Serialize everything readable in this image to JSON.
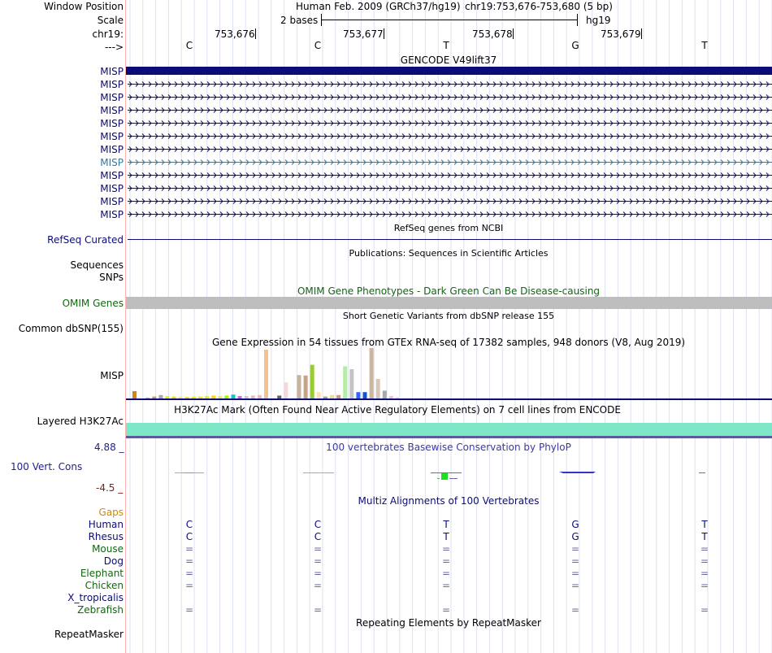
{
  "header": {
    "window_position_label": "Window Position",
    "scale_label": "Scale",
    "chrom_label": "chr19:",
    "strand_label": "--->",
    "assembly_title": "Human Feb. 2009 (GRCh37/hg19)",
    "position": "chr19:753,676-753,680 (5 bp)",
    "scale_text": "2 bases",
    "db": "hg19",
    "ruler_ticks": [
      "753,676",
      "753,677",
      "753,678",
      "753,679"
    ],
    "bases": [
      "C",
      "C",
      "T",
      "G",
      "T"
    ]
  },
  "gencode": {
    "title": "GENCODE V49lift37",
    "labels": [
      "MISP",
      "MISP",
      "MISP",
      "MISP",
      "MISP",
      "MISP",
      "MISP",
      "MISP",
      "MISP",
      "MISP",
      "MISP",
      "MISP"
    ],
    "highlight_index": 7
  },
  "refseq": {
    "title": "RefSeq genes from NCBI",
    "label": "RefSeq Curated"
  },
  "publications": {
    "title": "Publications: Sequences in Scientific Articles",
    "labels": [
      "Sequences",
      "SNPs"
    ]
  },
  "omim": {
    "title": "OMIM Gene Phenotypes - Dark Green Can Be Disease-causing",
    "label": "OMIM Genes"
  },
  "dbsnp": {
    "title": "Short Genetic Variants from dbSNP release 155",
    "label": "Common dbSNP(155)"
  },
  "gtex": {
    "title": "Gene Expression in 54 tissues from GTEx RNA-seq of 17382 samples, 948 donors (V8, Aug 2019)",
    "label": "MISP",
    "bars": [
      {
        "v": 0.15,
        "c": "#d4850b"
      },
      {
        "v": 0.0,
        "c": "#ffaa00"
      },
      {
        "v": 0.02,
        "c": "#bbbbbb"
      },
      {
        "v": 0.04,
        "c": "#cc9966"
      },
      {
        "v": 0.07,
        "c": "#aaa9a9"
      },
      {
        "v": 0.05,
        "c": "#eeee00"
      },
      {
        "v": 0.04,
        "c": "#ffd700"
      },
      {
        "v": 0.04,
        "c": "#f0e68c"
      },
      {
        "v": 0.03,
        "c": "#ffd700"
      },
      {
        "v": 0.04,
        "c": "#eeee00"
      },
      {
        "v": 0.04,
        "c": "#ffdd33"
      },
      {
        "v": 0.05,
        "c": "#eeee00"
      },
      {
        "v": 0.06,
        "c": "#ffd700"
      },
      {
        "v": 0.05,
        "c": "#eeee44"
      },
      {
        "v": 0.06,
        "c": "#99ff00"
      },
      {
        "v": 0.08,
        "c": "#00cccc"
      },
      {
        "v": 0.05,
        "c": "#cc66ff"
      },
      {
        "v": 0.05,
        "c": "#d9c6c6"
      },
      {
        "v": 0.06,
        "c": "#eeb8b8"
      },
      {
        "v": 0.07,
        "c": "#eebbbb"
      },
      {
        "v": 1.0,
        "c": "#f4c28d"
      },
      {
        "v": 0.0,
        "c": "#ffffff"
      },
      {
        "v": 0.06,
        "c": "#666666"
      },
      {
        "v": 0.33,
        "c": "#f5d9d9"
      },
      {
        "v": 0.0,
        "c": "#ffffff"
      },
      {
        "v": 0.48,
        "c": "#c9b39f"
      },
      {
        "v": 0.47,
        "c": "#c4a484"
      },
      {
        "v": 0.69,
        "c": "#99cc33"
      },
      {
        "v": 0.13,
        "c": "#ffe0bb"
      },
      {
        "v": 0.04,
        "c": "#a0a0a0"
      },
      {
        "v": 0.07,
        "c": "#eedd99"
      },
      {
        "v": 0.07,
        "c": "#cd9b77"
      },
      {
        "v": 0.66,
        "c": "#b7eca4"
      },
      {
        "v": 0.6,
        "c": "#c4c4c4"
      },
      {
        "v": 0.13,
        "c": "#3366ff"
      },
      {
        "v": 0.13,
        "c": "#1155cc"
      },
      {
        "v": 1.05,
        "c": "#ccb69c"
      },
      {
        "v": 0.4,
        "c": "#d9c7b3"
      },
      {
        "v": 0.16,
        "c": "#a9a9a9"
      },
      {
        "v": 0.05,
        "c": "#ffbbcc"
      },
      {
        "v": 0.03,
        "c": "#eedddd"
      }
    ]
  },
  "h3k27ac": {
    "title": "H3K27Ac Mark (Often Found Near Active Regulatory Elements) on 7 cell lines from ENCODE",
    "label": "Layered H3K27Ac",
    "color": "#7de7c8"
  },
  "phylop": {
    "title": "100 vertebrates Basewise Conservation by PhyloP",
    "label": "100 Vert. Cons",
    "max": "4.88 _",
    "min": "-4.5 _"
  },
  "multiz": {
    "title": "Multiz Alignments of 100 Vertebrates",
    "gaps_label": "Gaps",
    "species": [
      {
        "name": "Human",
        "color": "#0c0c78",
        "bases": [
          "C",
          "C",
          "T",
          "G",
          "T"
        ]
      },
      {
        "name": "Rhesus",
        "color": "#0c0c78",
        "bases": [
          "C",
          "C",
          "T",
          "G",
          "T"
        ]
      },
      {
        "name": "Mouse",
        "color": "#126612",
        "bases": [
          "=",
          "=",
          "=",
          "=",
          "="
        ]
      },
      {
        "name": "Dog",
        "color": "#0c0c78",
        "bases": [
          "=",
          "=",
          "=",
          "=",
          "="
        ]
      },
      {
        "name": "Elephant",
        "color": "#126612",
        "bases": [
          "=",
          "=",
          "=",
          "=",
          "="
        ]
      },
      {
        "name": "Chicken",
        "color": "#126612",
        "bases": [
          "=",
          "=",
          "=",
          "=",
          "="
        ]
      },
      {
        "name": "X_tropicalis",
        "color": "#0c0c78",
        "bases": [
          "",
          "",
          "",
          "",
          ""
        ]
      },
      {
        "name": "Zebrafish",
        "color": "#126612",
        "bases": [
          "=",
          "=",
          "=",
          "=",
          "="
        ]
      }
    ]
  },
  "repeatmasker": {
    "title": "Repeating Elements by RepeatMasker",
    "label": "RepeatMasker"
  }
}
